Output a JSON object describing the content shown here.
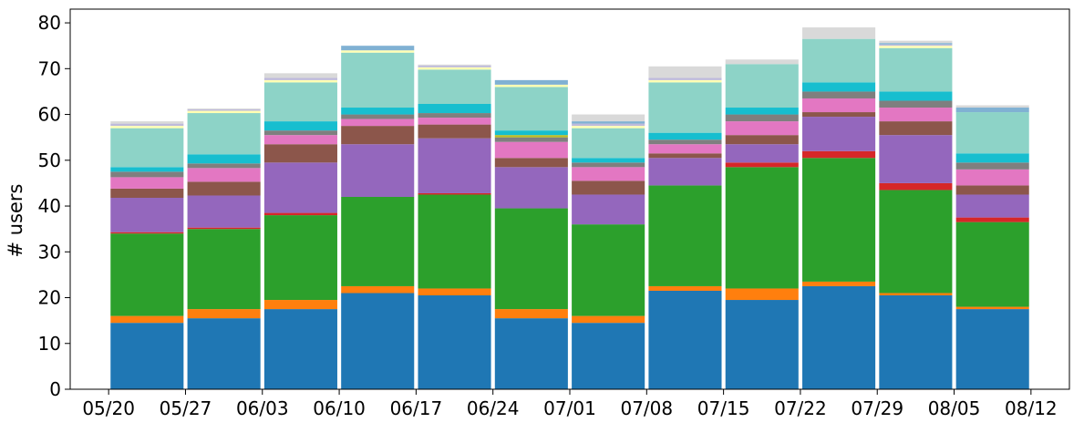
{
  "chart_data": {
    "type": "bar",
    "stacked": true,
    "ylabel": "# users",
    "xlabel": "",
    "ylim": [
      0,
      83
    ],
    "yticks": [
      0,
      10,
      20,
      30,
      40,
      50,
      60,
      70,
      80
    ],
    "x_tick_labels": [
      "05/20",
      "05/27",
      "06/03",
      "06/10",
      "06/17",
      "06/24",
      "07/01",
      "07/08",
      "07/15",
      "07/22",
      "07/29",
      "08/05",
      "08/12"
    ],
    "bar_positions": [
      0.5,
      1.5,
      2.5,
      3.5,
      4.5,
      5.5,
      6.5,
      7.5,
      8.5,
      9.5,
      10.5,
      11.5
    ],
    "grid": false,
    "legend": "none",
    "series": [
      {
        "color": "#1f77b4",
        "values": [
          14.5,
          15.5,
          17.5,
          21.0,
          20.5,
          15.5,
          14.5,
          21.5,
          19.5,
          22.5,
          20.5,
          17.5
        ]
      },
      {
        "color": "#ff7f0e",
        "values": [
          1.5,
          2.0,
          2.0,
          1.5,
          1.5,
          2.0,
          1.5,
          1.0,
          2.5,
          1.0,
          0.5,
          0.5
        ]
      },
      {
        "color": "#2ca02c",
        "values": [
          18.0,
          17.5,
          18.5,
          19.5,
          20.5,
          22.0,
          20.0,
          22.0,
          26.5,
          27.0,
          22.5,
          18.5
        ]
      },
      {
        "color": "#d62728",
        "values": [
          0.3,
          0.3,
          0.5,
          0,
          0.3,
          0,
          0,
          0,
          1.0,
          1.5,
          1.5,
          1.0
        ]
      },
      {
        "color": "#9467bd",
        "values": [
          7.5,
          7.0,
          11.0,
          11.5,
          12.0,
          9.0,
          6.5,
          6.0,
          4.0,
          7.5,
          10.5,
          5.0
        ]
      },
      {
        "color": "#8c564b",
        "values": [
          2.0,
          3.0,
          4.0,
          4.0,
          3.0,
          2.0,
          3.0,
          1.0,
          2.0,
          1.0,
          3.0,
          2.0
        ]
      },
      {
        "color": "#e377c2",
        "values": [
          2.5,
          3.0,
          2.0,
          1.5,
          1.5,
          3.5,
          3.0,
          2.0,
          3.0,
          3.0,
          3.0,
          3.5
        ]
      },
      {
        "color": "#7f7f7f",
        "values": [
          1.2,
          1.0,
          1.0,
          1.0,
          1.0,
          1.0,
          1.0,
          1.0,
          1.5,
          1.5,
          1.5,
          1.5
        ]
      },
      {
        "color": "#bcbd22",
        "values": [
          0,
          0,
          0,
          0,
          0,
          0.5,
          0,
          0,
          0,
          0,
          0,
          0
        ]
      },
      {
        "color": "#17becf",
        "values": [
          1.0,
          2.0,
          2.0,
          1.5,
          2.0,
          1.0,
          1.0,
          1.5,
          1.5,
          2.0,
          2.0,
          2.0
        ]
      },
      {
        "color": "#8dd3c7",
        "values": [
          8.5,
          9.0,
          8.5,
          12.0,
          7.5,
          9.5,
          6.5,
          11.0,
          9.5,
          9.5,
          9.5,
          9.0
        ]
      },
      {
        "color": "#ffffb3",
        "values": [
          0.5,
          0.5,
          0.5,
          0.5,
          0.5,
          0.5,
          0.5,
          0.5,
          0,
          0,
          0.5,
          0
        ]
      },
      {
        "color": "#bebada",
        "values": [
          0.5,
          0.3,
          0.5,
          0,
          0.4,
          0,
          0.5,
          0.5,
          0,
          0,
          0.3,
          0
        ]
      },
      {
        "color": "#80b1d3",
        "values": [
          0,
          0,
          0,
          1.0,
          0,
          1.0,
          0.5,
          0,
          0,
          0,
          0.3,
          1.0
        ]
      },
      {
        "color": "#d9d9d9",
        "values": [
          0.5,
          0.2,
          1.0,
          0,
          0.2,
          0,
          1.5,
          2.5,
          1.0,
          2.5,
          0.5,
          0.5
        ]
      }
    ]
  }
}
